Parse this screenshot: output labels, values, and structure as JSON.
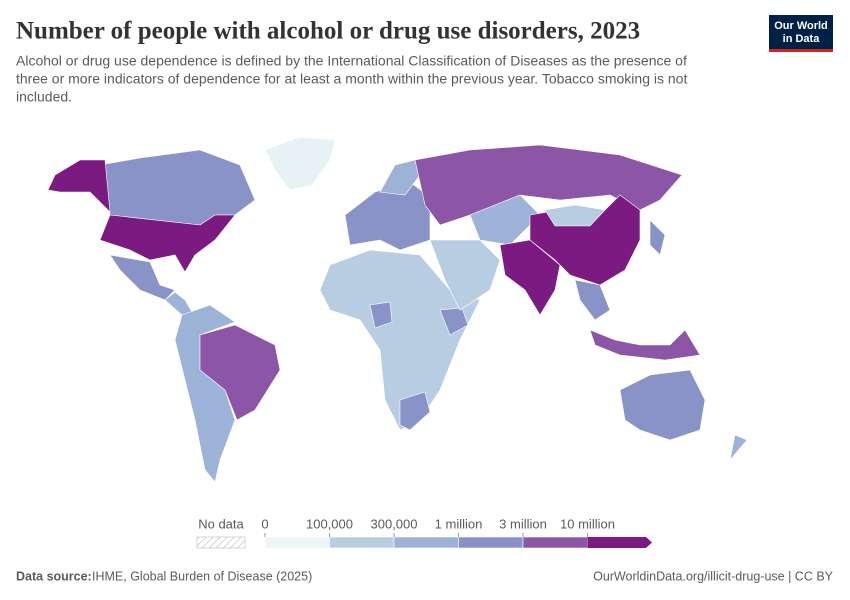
{
  "header": {
    "title": "Number of people with alcohol or drug use disorders, 2023",
    "subtitle": [
      "Alcohol or drug use dependence is defined by the International Classification of Diseases as the presence of",
      "three or more indicators of dependence for at least a month within the previous year. Tobacco smoking is not",
      "included."
    ],
    "logo": [
      "Our World",
      "in Data"
    ]
  },
  "legend": {
    "no_data": "No data",
    "ticks": [
      0,
      {
        "value": 100000,
        "label": "100,000"
      },
      {
        "value": 300000,
        "label": "300,000"
      },
      {
        "value": 1000000,
        "label": "1 million"
      },
      {
        "value": 3000000,
        "label": "3 million"
      },
      {
        "value": 10000000,
        "label": "10 million"
      }
    ],
    "colors": [
      "#eef6f8",
      "#b9cde2",
      "#9cb2d6",
      "#8a8fc6",
      "#8c55a6",
      "#7b1a80"
    ]
  },
  "footer": {
    "source_label": "Data source:",
    "source": "IHME, Global Burden of Disease (2025)",
    "url": "OurWorldinData.org/illicit-drug-use | CC BY"
  }
}
